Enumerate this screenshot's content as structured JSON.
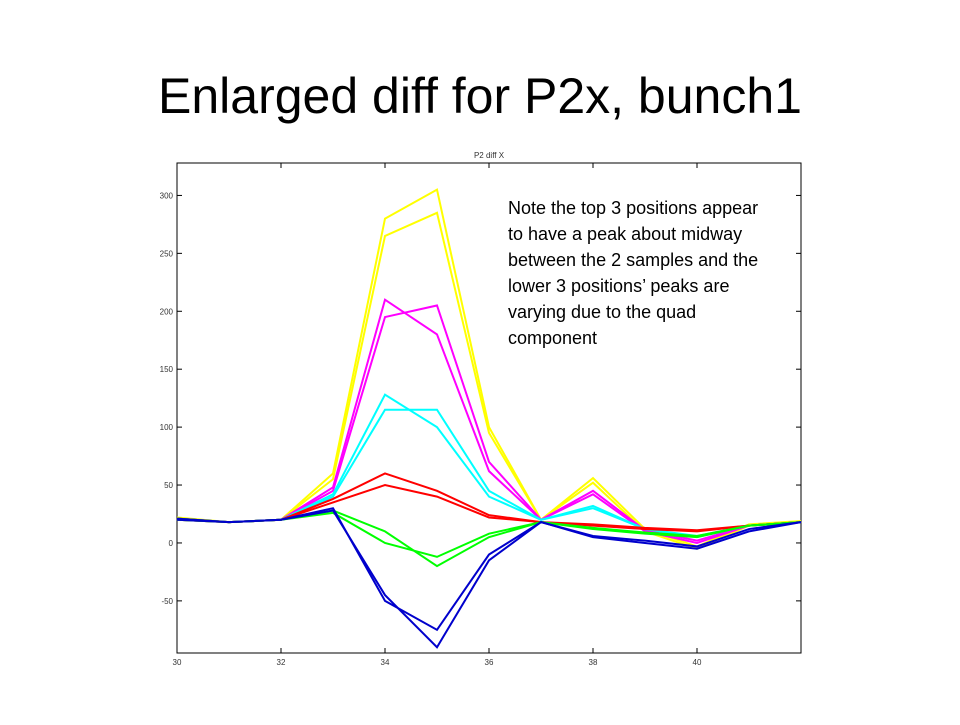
{
  "slide_title": "Enlarged diff for P2x, bunch1",
  "chart_data": {
    "type": "line",
    "title": "P2 diff X",
    "x": [
      30,
      31,
      32,
      33,
      34,
      35,
      36,
      37,
      38,
      39,
      40,
      41,
      42
    ],
    "xlim": [
      30,
      42
    ],
    "xticks": [
      30,
      32,
      34,
      36,
      38,
      40
    ],
    "ylim": [
      -95,
      328
    ],
    "yticks": [
      -50,
      0,
      50,
      100,
      150,
      200,
      250,
      300
    ],
    "series": [
      {
        "color": "#ffff00",
        "values": [
          20,
          18,
          20,
          55,
          265,
          285,
          95,
          20,
          52,
          10,
          -5,
          15,
          18
        ]
      },
      {
        "color": "#ffff00",
        "values": [
          22,
          18,
          20,
          60,
          280,
          305,
          100,
          20,
          56,
          12,
          -3,
          16,
          19
        ]
      },
      {
        "color": "#ff00ff",
        "values": [
          20,
          18,
          20,
          45,
          195,
          205,
          70,
          20,
          42,
          10,
          0,
          15,
          18
        ]
      },
      {
        "color": "#ff00ff",
        "values": [
          21,
          18,
          20,
          48,
          210,
          180,
          62,
          20,
          45,
          11,
          2,
          15,
          18
        ]
      },
      {
        "color": "#00ffff",
        "values": [
          20,
          18,
          20,
          40,
          115,
          115,
          45,
          20,
          32,
          12,
          5,
          15,
          18
        ]
      },
      {
        "color": "#00ffff",
        "values": [
          21,
          18,
          20,
          42,
          128,
          100,
          40,
          20,
          30,
          12,
          6,
          15,
          18
        ]
      },
      {
        "color": "#ff0000",
        "values": [
          20,
          18,
          20,
          35,
          50,
          40,
          22,
          18,
          15,
          12,
          10,
          15,
          18
        ]
      },
      {
        "color": "#ff0000",
        "values": [
          21,
          18,
          20,
          38,
          60,
          45,
          24,
          18,
          16,
          13,
          11,
          15,
          18
        ]
      },
      {
        "color": "#00ff00",
        "values": [
          20,
          18,
          20,
          28,
          10,
          -20,
          5,
          18,
          12,
          8,
          5,
          15,
          18
        ]
      },
      {
        "color": "#00ff00",
        "values": [
          21,
          18,
          20,
          26,
          0,
          -12,
          8,
          18,
          13,
          9,
          6,
          15,
          18
        ]
      },
      {
        "color": "#0000cc",
        "values": [
          20,
          18,
          20,
          30,
          -50,
          -75,
          -10,
          18,
          5,
          0,
          -5,
          10,
          18
        ]
      },
      {
        "color": "#0000cc",
        "values": [
          21,
          18,
          20,
          28,
          -45,
          -90,
          -15,
          18,
          6,
          2,
          -3,
          12,
          18
        ]
      }
    ],
    "annotation": [
      "Note the top 3 positions appear",
      "to have a peak about midway",
      "between the 2 samples and the",
      "lower 3 positions’ peaks are",
      "varying due to the quad",
      "component"
    ]
  }
}
